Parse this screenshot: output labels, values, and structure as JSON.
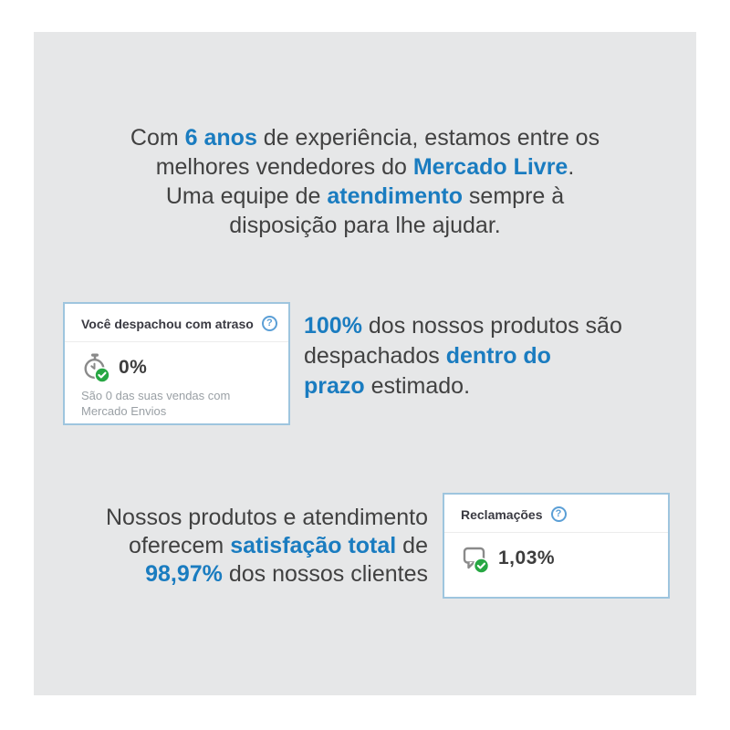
{
  "colors": {
    "panel_bg": "#e6e7e8",
    "accent_blue": "#1a7cc0",
    "text_dark": "#414141",
    "card_border": "#9ec5de",
    "card_title": "#3a3a42",
    "muted_text": "#9aa0a5",
    "icon_gray": "#8a8a8a",
    "badge_green": "#27a743",
    "help_blue": "#5b9fd6"
  },
  "intro": {
    "lines": [
      [
        {
          "t": "Com ",
          "em": 0
        },
        {
          "t": "6 anos",
          "em": 1
        },
        {
          "t": " de experiência, estamos entre os",
          "em": 0
        }
      ],
      [
        {
          "t": "melhores vendedores do ",
          "em": 0
        },
        {
          "t": "Mercado Livre",
          "em": 1
        },
        {
          "t": ".",
          "em": 0
        }
      ],
      [
        {
          "t": "Uma equipe de ",
          "em": 0
        },
        {
          "t": "atendimento",
          "em": 1
        },
        {
          "t": " sempre à",
          "em": 0
        }
      ],
      [
        {
          "t": "disposição para lhe ajudar.",
          "em": 0
        }
      ]
    ]
  },
  "shipping_card": {
    "title": "Você despachou com atraso",
    "help_glyph": "?",
    "value": "0%",
    "note": "São 0 das suas vendas com Mercado Envios"
  },
  "shipping_text": {
    "lines": [
      [
        {
          "t": "100%",
          "em": 1
        },
        {
          "t": " dos nossos produtos são",
          "em": 0
        }
      ],
      [
        {
          "t": "despachados ",
          "em": 0
        },
        {
          "t": "dentro do",
          "em": 1
        }
      ],
      [
        {
          "t": "prazo",
          "em": 1
        },
        {
          "t": " estimado.",
          "em": 0
        }
      ]
    ]
  },
  "satisfaction_text": {
    "lines": [
      [
        {
          "t": "Nossos produtos e atendimento",
          "em": 0
        }
      ],
      [
        {
          "t": "oferecem ",
          "em": 0
        },
        {
          "t": "satisfação total",
          "em": 1
        },
        {
          "t": " de",
          "em": 0
        }
      ],
      [
        {
          "t": "98,97%",
          "em": 1
        },
        {
          "t": " dos nossos clientes",
          "em": 0
        }
      ]
    ]
  },
  "claims_card": {
    "title": "Reclamações",
    "help_glyph": "?",
    "value": "1,03%"
  }
}
